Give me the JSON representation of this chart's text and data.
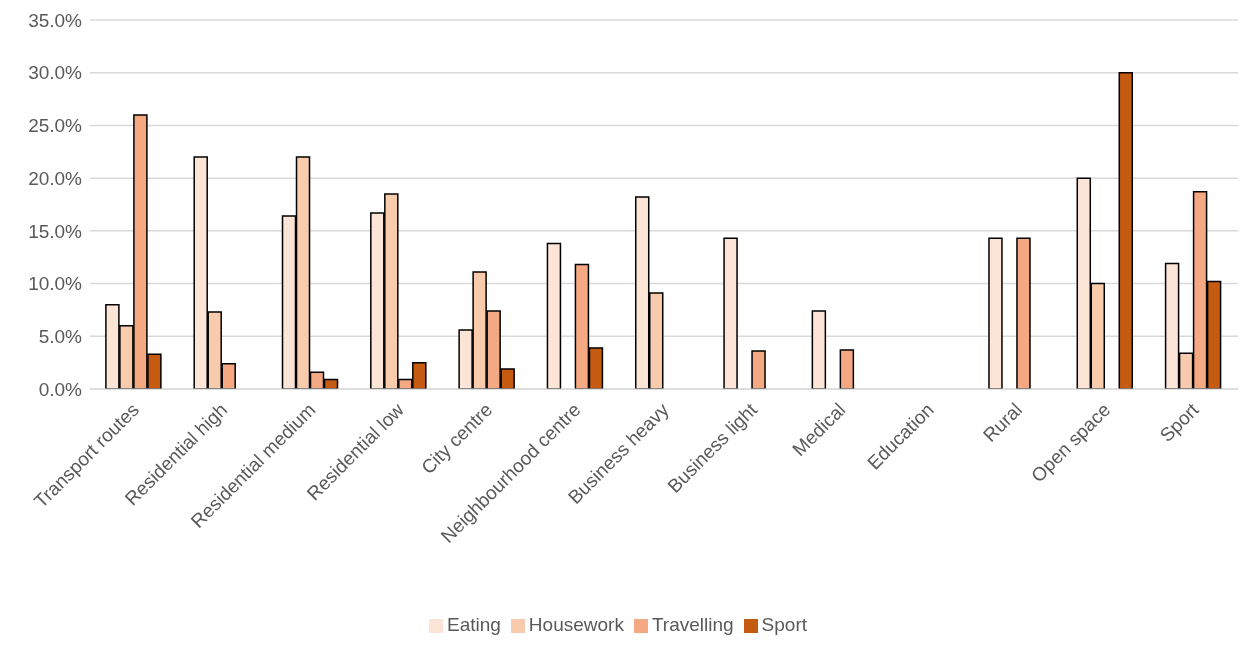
{
  "chart_data": {
    "type": "bar",
    "categories": [
      "Transport routes",
      "Residential high",
      "Residential medium",
      "Residential low",
      "City centre",
      "Neighbourhood centre",
      "Business heavy",
      "Business light",
      "Medical",
      "Education",
      "Rural",
      "Open space",
      "Sport"
    ],
    "series": [
      {
        "name": "Eating",
        "color": "#fce4d6",
        "values": [
          8.0,
          22.0,
          16.4,
          16.7,
          5.6,
          13.8,
          18.2,
          14.3,
          7.4,
          0,
          14.3,
          20.0,
          11.9
        ]
      },
      {
        "name": "Housework",
        "color": "#f8cbad",
        "values": [
          6.0,
          7.3,
          22.0,
          18.5,
          11.1,
          0,
          9.1,
          0,
          0,
          0,
          0,
          10.0,
          3.4
        ]
      },
      {
        "name": "Travelling",
        "color": "#f4a982",
        "values": [
          26.0,
          2.4,
          1.6,
          0.9,
          7.4,
          11.8,
          0,
          3.6,
          3.7,
          0,
          14.3,
          0,
          18.7
        ]
      },
      {
        "name": "Sport",
        "color": "#c55a11",
        "values": [
          3.3,
          0,
          0.9,
          2.5,
          1.9,
          3.9,
          0,
          0,
          0,
          0,
          0,
          30.0,
          10.2
        ]
      }
    ],
    "ylim": [
      0,
      35
    ],
    "yticks": [
      {
        "value": 0,
        "label": "0.0%"
      },
      {
        "value": 5,
        "label": "5.0%"
      },
      {
        "value": 10,
        "label": "10.0%"
      },
      {
        "value": 15,
        "label": "15.0%"
      },
      {
        "value": 20,
        "label": "20.0%"
      },
      {
        "value": 25,
        "label": "25.0%"
      },
      {
        "value": 30,
        "label": "30.0%"
      },
      {
        "value": 35,
        "label": "35.0%"
      }
    ],
    "grid": "y",
    "legend": "bottom"
  }
}
